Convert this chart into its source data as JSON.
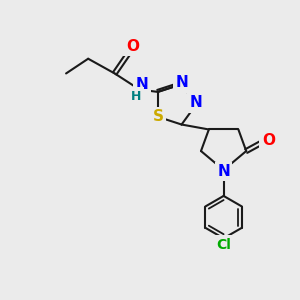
{
  "bg_color": "#ebebeb",
  "bond_color": "#1a1a1a",
  "atom_colors": {
    "N": "#0000ff",
    "O": "#ff0000",
    "S": "#ccaa00",
    "H": "#008080",
    "Cl": "#00aa00",
    "C": "#1a1a1a"
  },
  "font_size": 9,
  "figsize": [
    3.0,
    3.0
  ],
  "dpi": 100
}
